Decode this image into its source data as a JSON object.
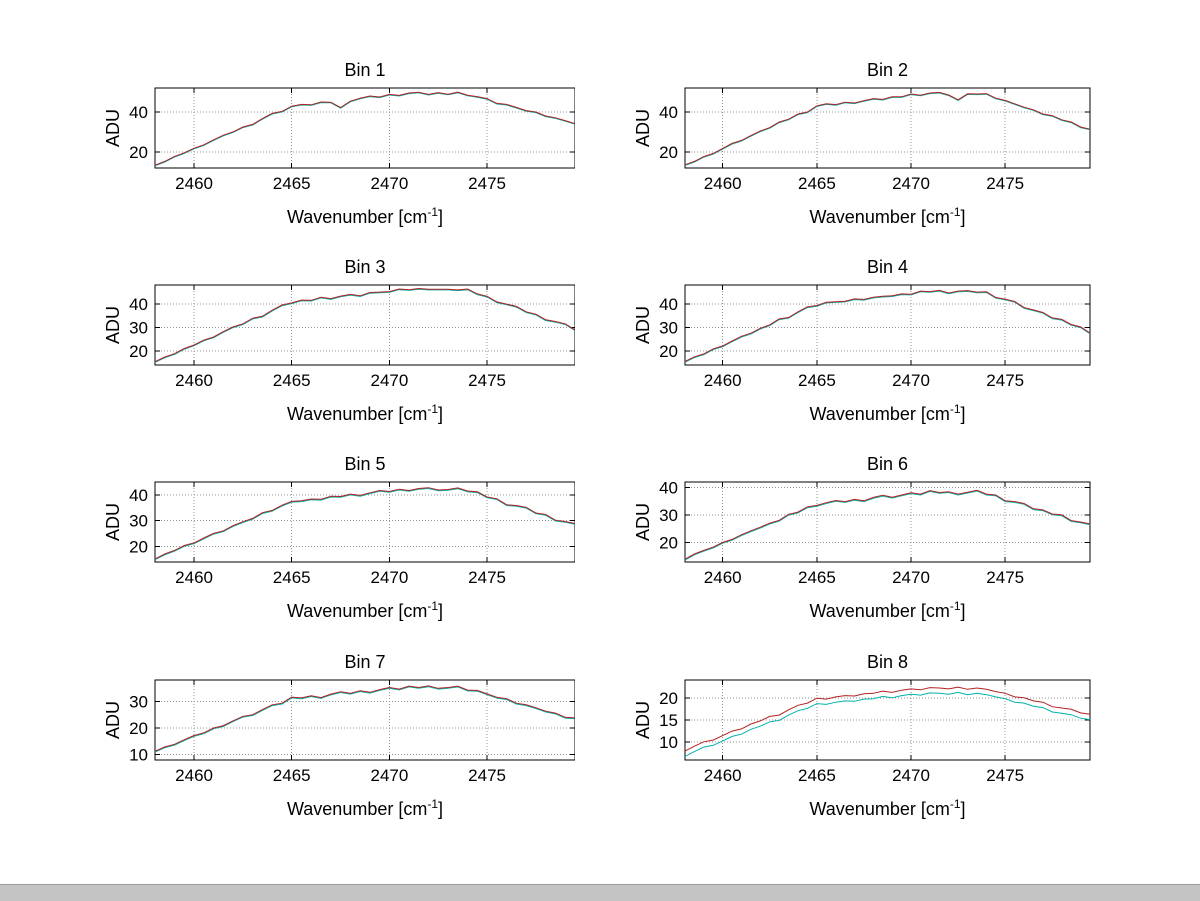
{
  "figure": {
    "background": "#ffffff",
    "bottom_bar_color": "#c4c4c4"
  },
  "chart_data": {
    "type": "line",
    "layout": {
      "rows": 4,
      "cols": 2,
      "grid": "dotted",
      "legend": "none",
      "box": "on"
    },
    "xlabel": {
      "pre": "Wavenumber [cm",
      "sup": "-1",
      "post": "]"
    },
    "ylabel": "ADU",
    "xlim": [
      2458,
      2479.5
    ],
    "xticks": [
      2460,
      2465,
      2470,
      2475
    ],
    "axis_color": "#000000",
    "grid_color": "#969696",
    "series_colors": [
      "#00b2a9",
      "#b22222"
    ],
    "x": [
      2458,
      2458.5,
      2459,
      2459.5,
      2460,
      2460.5,
      2461,
      2461.5,
      2462,
      2462.5,
      2463,
      2463.5,
      2464,
      2464.5,
      2465,
      2465.5,
      2466,
      2466.5,
      2467,
      2467.5,
      2468,
      2468.5,
      2469,
      2469.5,
      2470,
      2470.5,
      2471,
      2471.5,
      2472,
      2472.5,
      2473,
      2473.5,
      2474,
      2474.5,
      2475,
      2475.5,
      2476,
      2476.5,
      2477,
      2477.5,
      2478,
      2478.5,
      2479,
      2479.5
    ],
    "subplots": [
      {
        "title": "Bin 1",
        "ylim": [
          12,
          52
        ],
        "yticks": [
          20,
          40
        ],
        "series": [
          {
            "name": "trace-teal",
            "color": "#00b2a9",
            "values": [
              13.1,
              15.0,
              17.5,
              19.3,
              21.6,
              23.3,
              25.8,
              28.1,
              29.8,
              32.2,
              33.5,
              36.4,
              39.0,
              40.0,
              42.6,
              43.5,
              43.3,
              44.7,
              44.6,
              41.9,
              45.1,
              46.6,
              47.7,
              47.2,
              48.5,
              48.0,
              49.2,
              49.6,
              48.5,
              49.4,
              48.6,
              49.6,
              48.1,
              47.4,
              46.4,
              44.0,
              43.5,
              42.0,
              40.4,
              39.7,
              37.7,
              36.8,
              35.4,
              33.9
            ]
          },
          {
            "name": "trace-red",
            "color": "#b22222",
            "values": [
              13.4,
              15.3,
              17.8,
              19.6,
              21.9,
              23.6,
              26.1,
              28.4,
              30.1,
              32.5,
              33.8,
              36.7,
              39.3,
              40.3,
              42.9,
              43.8,
              43.6,
              45.0,
              44.9,
              42.2,
              45.4,
              46.9,
              48.0,
              47.5,
              48.8,
              48.3,
              49.5,
              49.9,
              48.8,
              49.7,
              48.9,
              49.9,
              48.4,
              47.7,
              46.7,
              44.3,
              43.8,
              42.3,
              40.7,
              40.0,
              38.0,
              37.1,
              35.7,
              34.2
            ]
          }
        ]
      },
      {
        "title": "Bin 2",
        "ylim": [
          12,
          52
        ],
        "yticks": [
          20,
          40
        ],
        "series": [
          {
            "name": "trace-teal",
            "color": "#00b2a9",
            "values": [
              13.3,
              15.0,
              17.4,
              19.0,
              21.5,
              24.0,
              25.5,
              27.9,
              30.2,
              31.9,
              34.7,
              36.1,
              38.7,
              39.7,
              42.8,
              43.8,
              43.4,
              44.6,
              44.2,
              45.4,
              46.4,
              46.0,
              47.3,
              47.3,
              48.7,
              48.1,
              49.2,
              49.5,
              48.2,
              45.8,
              48.8,
              48.7,
              48.9,
              46.6,
              45.5,
              43.8,
              42.1,
              40.8,
              38.7,
              37.9,
              35.8,
              34.7,
              32.2,
              31.1
            ]
          },
          {
            "name": "trace-red",
            "color": "#b22222",
            "values": [
              13.6,
              15.3,
              17.7,
              19.3,
              21.8,
              24.3,
              25.8,
              28.2,
              30.5,
              32.2,
              35.0,
              36.4,
              39.0,
              40.0,
              43.1,
              44.1,
              43.7,
              44.9,
              44.5,
              45.7,
              46.7,
              46.3,
              47.6,
              47.6,
              49.0,
              48.4,
              49.5,
              49.8,
              48.5,
              46.1,
              49.1,
              49.0,
              49.2,
              46.9,
              45.8,
              44.1,
              42.4,
              41.1,
              39.0,
              38.2,
              36.1,
              35.0,
              32.5,
              31.4
            ]
          }
        ]
      },
      {
        "title": "Bin 3",
        "ylim": [
          14,
          48
        ],
        "yticks": [
          20,
          30,
          40
        ],
        "series": [
          {
            "name": "trace-teal",
            "color": "#00b2a9",
            "values": [
              15.1,
              17.1,
              18.5,
              20.7,
              22.2,
              24.3,
              25.6,
              27.9,
              29.9,
              31.2,
              33.6,
              34.4,
              37.0,
              39.2,
              40.1,
              41.3,
              41.2,
              42.5,
              41.9,
              43.0,
              43.7,
              43.1,
              44.5,
              44.7,
              44.9,
              46.0,
              45.7,
              46.2,
              45.9,
              45.9,
              45.9,
              45.6,
              46.0,
              43.9,
              42.9,
              40.5,
              39.6,
              38.6,
              36.3,
              35.3,
              32.9,
              32.2,
              31.2,
              28.6
            ]
          },
          {
            "name": "trace-red",
            "color": "#b22222",
            "values": [
              15.4,
              17.4,
              18.8,
              21.0,
              22.5,
              24.6,
              25.9,
              28.2,
              30.2,
              31.5,
              33.9,
              34.7,
              37.3,
              39.5,
              40.4,
              41.6,
              41.5,
              42.8,
              42.2,
              43.3,
              44.0,
              43.4,
              44.8,
              45.0,
              45.2,
              46.3,
              46.0,
              46.5,
              46.2,
              46.2,
              46.2,
              45.9,
              46.3,
              44.2,
              43.2,
              40.8,
              39.9,
              38.9,
              36.6,
              35.6,
              33.2,
              32.5,
              31.5,
              28.9
            ]
          }
        ]
      },
      {
        "title": "Bin 4",
        "ylim": [
          14,
          48
        ],
        "yticks": [
          20,
          30,
          40
        ],
        "series": [
          {
            "name": "trace-teal",
            "color": "#00b2a9",
            "values": [
              15.2,
              17.2,
              18.4,
              20.6,
              21.8,
              23.9,
              25.9,
              27.2,
              29.3,
              30.8,
              33.3,
              33.9,
              36.3,
              38.4,
              39.0,
              40.4,
              40.6,
              40.8,
              41.8,
              41.6,
              42.5,
              42.9,
              43.1,
              43.9,
              43.8,
              45.1,
              44.9,
              45.4,
              44.3,
              45.1,
              45.3,
              44.7,
              44.8,
              42.4,
              41.7,
              40.7,
              38.1,
              37.1,
              36.0,
              33.7,
              33.1,
              30.9,
              29.9,
              27.3
            ]
          },
          {
            "name": "trace-red",
            "color": "#b22222",
            "values": [
              15.5,
              17.5,
              18.7,
              20.9,
              22.1,
              24.2,
              26.2,
              27.5,
              29.6,
              31.1,
              33.6,
              34.2,
              36.6,
              38.7,
              39.3,
              40.7,
              40.9,
              41.1,
              42.1,
              41.9,
              42.8,
              43.2,
              43.4,
              44.2,
              44.1,
              45.4,
              45.2,
              45.7,
              44.6,
              45.4,
              45.6,
              45.0,
              45.1,
              42.7,
              42.0,
              41.0,
              38.4,
              37.4,
              36.3,
              34.0,
              33.4,
              31.2,
              30.2,
              27.6
            ]
          }
        ]
      },
      {
        "title": "Bin 5",
        "ylim": [
          14,
          45
        ],
        "yticks": [
          20,
          30,
          40
        ],
        "series": [
          {
            "name": "trace-teal",
            "color": "#00b2a9",
            "values": [
              14.9,
              16.8,
              18.2,
              20.1,
              21.1,
              23.0,
              24.8,
              25.8,
              27.8,
              29.3,
              30.6,
              32.8,
              33.7,
              35.7,
              37.2,
              37.4,
              38.1,
              38.0,
              39.2,
              39.1,
              40.0,
              39.5,
              40.5,
              41.4,
              41.0,
              41.9,
              41.4,
              42.2,
              42.5,
              41.6,
              41.8,
              42.4,
              41.2,
              40.9,
              38.9,
              38.2,
              35.9,
              35.6,
              34.9,
              32.7,
              32.1,
              29.9,
              29.4,
              28.6
            ]
          },
          {
            "name": "trace-red",
            "color": "#b22222",
            "values": [
              15.2,
              17.1,
              18.5,
              20.4,
              21.4,
              23.3,
              25.1,
              26.1,
              28.1,
              29.6,
              30.9,
              33.1,
              34.0,
              36.0,
              37.5,
              37.7,
              38.4,
              38.3,
              39.5,
              39.4,
              40.3,
              39.8,
              40.8,
              41.7,
              41.3,
              42.2,
              41.7,
              42.5,
              42.8,
              41.9,
              42.1,
              42.7,
              41.5,
              41.2,
              39.2,
              38.5,
              36.2,
              35.9,
              35.2,
              33.0,
              32.4,
              30.2,
              29.7,
              28.9
            ]
          }
        ]
      },
      {
        "title": "Bin 6",
        "ylim": [
          13,
          42
        ],
        "yticks": [
          20,
          30,
          40
        ],
        "series": [
          {
            "name": "trace-teal",
            "color": "#00b2a9",
            "values": [
              13.7,
              15.6,
              16.9,
              18.1,
              19.8,
              20.9,
              22.6,
              24.0,
              25.3,
              26.8,
              27.8,
              30.0,
              30.8,
              32.7,
              33.2,
              34.2,
              35.0,
              34.6,
              35.4,
              34.9,
              36.1,
              36.9,
              36.2,
              37.0,
              37.8,
              37.3,
              38.6,
              37.9,
              38.2,
              37.3,
              38.0,
              38.7,
              37.3,
              37.0,
              34.9,
              34.6,
              33.9,
              32.0,
              31.6,
              30.1,
              29.8,
              27.7,
              27.2,
              26.5
            ]
          },
          {
            "name": "trace-red",
            "color": "#b22222",
            "values": [
              14.0,
              15.9,
              17.2,
              18.4,
              20.1,
              21.2,
              22.9,
              24.3,
              25.6,
              27.1,
              28.1,
              30.3,
              31.1,
              33.0,
              33.5,
              34.5,
              35.3,
              34.9,
              35.7,
              35.2,
              36.4,
              37.2,
              36.5,
              37.3,
              38.1,
              37.6,
              38.9,
              38.2,
              38.5,
              37.6,
              38.3,
              39.0,
              37.6,
              37.3,
              35.2,
              34.9,
              34.2,
              32.3,
              31.9,
              30.4,
              30.1,
              28.0,
              27.5,
              26.8
            ]
          }
        ]
      },
      {
        "title": "Bin 7",
        "ylim": [
          8,
          38
        ],
        "yticks": [
          10,
          20,
          30
        ],
        "series": [
          {
            "name": "trace-teal",
            "color": "#00b2a9",
            "values": [
              11.0,
              12.6,
              13.6,
              15.3,
              16.9,
              17.9,
              19.7,
              20.6,
              22.4,
              24.1,
              24.7,
              26.6,
              28.4,
              29.0,
              31.3,
              31.0,
              31.8,
              31.1,
              32.4,
              33.3,
              32.7,
              33.7,
              33.1,
              34.1,
              34.9,
              34.3,
              35.4,
              34.9,
              35.5,
              34.6,
              34.9,
              35.4,
              33.9,
              33.8,
              32.5,
              31.2,
              30.7,
              29.0,
              28.4,
              27.3,
              26.0,
              25.3,
              23.7,
              23.5
            ]
          },
          {
            "name": "trace-red",
            "color": "#b22222",
            "values": [
              11.3,
              12.9,
              13.9,
              15.6,
              17.2,
              18.2,
              20.0,
              20.9,
              22.7,
              24.4,
              25.0,
              26.9,
              28.7,
              29.3,
              31.6,
              31.3,
              32.1,
              31.4,
              32.7,
              33.6,
              33.0,
              34.0,
              33.4,
              34.4,
              35.2,
              34.6,
              35.7,
              35.2,
              35.8,
              34.9,
              35.2,
              35.7,
              34.2,
              34.1,
              32.8,
              31.5,
              31.0,
              29.3,
              28.7,
              27.6,
              26.3,
              25.6,
              24.0,
              23.8
            ]
          }
        ]
      },
      {
        "title": "Bin 8",
        "ylim": [
          6,
          24
        ],
        "yticks": [
          10,
          15,
          20
        ],
        "series": [
          {
            "name": "trace-teal",
            "color": "#00b2a9",
            "values": [
              6.8,
              7.9,
              8.9,
              9.3,
              10.3,
              11.3,
              11.8,
              12.9,
              13.6,
              14.6,
              14.9,
              16.1,
              17.1,
              17.6,
              18.7,
              18.5,
              19.0,
              19.3,
              19.2,
              19.7,
              19.8,
              20.3,
              20.0,
              20.5,
              20.8,
              20.6,
              21.1,
              21.0,
              20.8,
              21.2,
              20.7,
              21.0,
              20.7,
              20.2,
              19.8,
              19.0,
              18.8,
              18.1,
              17.8,
              16.8,
              16.5,
              16.2,
              15.4,
              15.1
            ]
          },
          {
            "name": "trace-red",
            "color": "#b22222",
            "values": [
              8.0,
              9.1,
              10.1,
              10.5,
              11.5,
              12.5,
              13.0,
              14.1,
              14.8,
              15.8,
              16.1,
              17.3,
              18.3,
              18.8,
              19.9,
              19.7,
              20.2,
              20.5,
              20.4,
              20.9,
              21.0,
              21.5,
              21.2,
              21.7,
              22.0,
              21.8,
              22.3,
              22.2,
              22.0,
              22.4,
              21.9,
              22.2,
              21.9,
              21.4,
              21.0,
              20.2,
              20.0,
              19.3,
              19.0,
              18.0,
              17.7,
              17.4,
              16.6,
              16.3
            ]
          }
        ]
      }
    ]
  }
}
